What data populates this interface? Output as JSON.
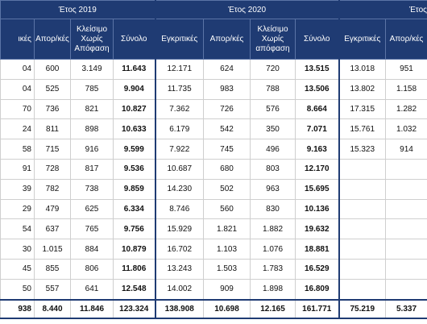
{
  "table": {
    "groups": [
      "Έτος 2019",
      "Έτος 2020",
      "Έτος"
    ],
    "headers": [
      "ικές",
      "Απορ/κές",
      "Κλείσιμο Χωρίς Απόφαση",
      "Σύνολο",
      "Εγκριτικές",
      "Απορ/κές",
      "Κλείσιμο Χωρίς απόφαση",
      "Σύνολο",
      "Εγκριτικές",
      "Απορ/κές"
    ],
    "rows": [
      [
        "04",
        "600",
        "3.149",
        "11.643",
        "12.171",
        "624",
        "720",
        "13.515",
        "13.018",
        "951"
      ],
      [
        "04",
        "525",
        "785",
        "9.904",
        "11.735",
        "983",
        "788",
        "13.506",
        "13.802",
        "1.158"
      ],
      [
        "70",
        "736",
        "821",
        "10.827",
        "7.362",
        "726",
        "576",
        "8.664",
        "17.315",
        "1.282"
      ],
      [
        "24",
        "811",
        "898",
        "10.633",
        "6.179",
        "542",
        "350",
        "7.071",
        "15.761",
        "1.032"
      ],
      [
        "58",
        "715",
        "916",
        "9.599",
        "7.922",
        "745",
        "496",
        "9.163",
        "15.323",
        "914"
      ],
      [
        "91",
        "728",
        "817",
        "9.536",
        "10.687",
        "680",
        "803",
        "12.170",
        null,
        null
      ],
      [
        "39",
        "782",
        "738",
        "9.859",
        "14.230",
        "502",
        "963",
        "15.695",
        null,
        null
      ],
      [
        "29",
        "479",
        "625",
        "6.334",
        "8.746",
        "560",
        "830",
        "10.136",
        null,
        null
      ],
      [
        "54",
        "637",
        "765",
        "9.756",
        "15.929",
        "1.821",
        "1.882",
        "19.632",
        null,
        null
      ],
      [
        "30",
        "1.015",
        "884",
        "10.879",
        "16.702",
        "1.103",
        "1.076",
        "18.881",
        null,
        null
      ],
      [
        "45",
        "855",
        "806",
        "11.806",
        "13.243",
        "1.503",
        "1.783",
        "16.529",
        null,
        null
      ],
      [
        "50",
        "557",
        "641",
        "12.548",
        "14.002",
        "909",
        "1.898",
        "16.809",
        null,
        null
      ]
    ],
    "total": [
      "938",
      "8.440",
      "11.846",
      "123.324",
      "138.908",
      "10.698",
      "12.165",
      "161.771",
      "75.219",
      "5.337"
    ]
  }
}
